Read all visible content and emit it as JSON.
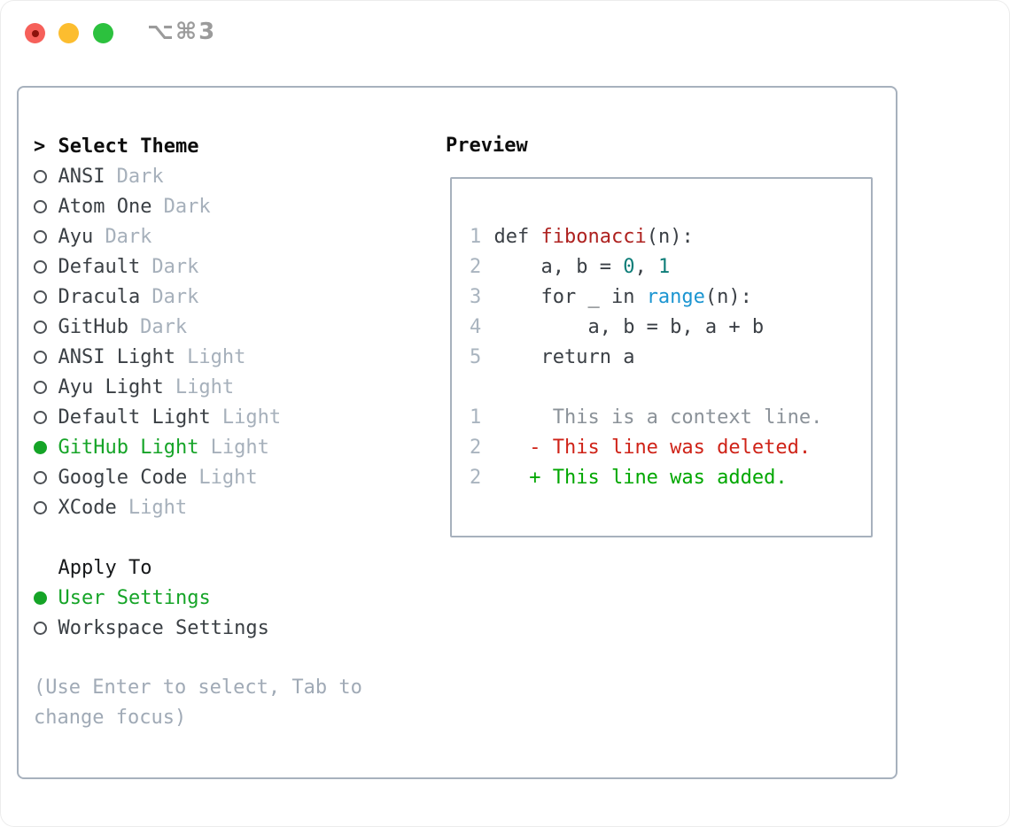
{
  "titlebar": {
    "shortcut": "⌥⌘3",
    "traffic_lights": [
      "close",
      "minimize",
      "zoom"
    ]
  },
  "colors": {
    "accent_green": "#15a427",
    "border_gray": "#a7b1bd",
    "code_text": "#3a3f45",
    "func_red": "#ae211f",
    "builtin_blue": "#1b95d1",
    "number_teal": "#0d7d78",
    "ctx_gray": "#8b9299",
    "diff_red": "#cf2318",
    "diff_green": "#00a700",
    "muted_gray": "#a6b0bb",
    "radio_outline": "#4d5156"
  },
  "theme_list": {
    "prompt": ">",
    "title": "Select Theme",
    "items": [
      {
        "label": "ANSI",
        "tag": "Dark",
        "selected": false
      },
      {
        "label": "Atom One",
        "tag": "Dark",
        "selected": false
      },
      {
        "label": "Ayu",
        "tag": "Dark",
        "selected": false
      },
      {
        "label": "Default",
        "tag": "Dark",
        "selected": false
      },
      {
        "label": "Dracula",
        "tag": "Dark",
        "selected": false
      },
      {
        "label": "GitHub",
        "tag": "Dark",
        "selected": false
      },
      {
        "label": "ANSI Light",
        "tag": "Light",
        "selected": false
      },
      {
        "label": "Ayu Light",
        "tag": "Light",
        "selected": false
      },
      {
        "label": "Default Light",
        "tag": "Light",
        "selected": false
      },
      {
        "label": "GitHub Light",
        "tag": "Light",
        "selected": true
      },
      {
        "label": "Google Code",
        "tag": "Light",
        "selected": false
      },
      {
        "label": "XCode",
        "tag": "Light",
        "selected": false
      }
    ]
  },
  "apply_to": {
    "title": "Apply To",
    "items": [
      {
        "label": "User Settings",
        "selected": true
      },
      {
        "label": "Workspace Settings",
        "selected": false
      }
    ]
  },
  "hint_lines": [
    "(Use Enter to select, Tab to",
    "change focus)"
  ],
  "preview": {
    "title": "Preview",
    "lines": [
      {
        "num": "1",
        "tokens": [
          [
            "def ",
            "code"
          ],
          [
            "fibonacci",
            "func"
          ],
          [
            "(n):",
            "code"
          ]
        ]
      },
      {
        "num": "2",
        "tokens": [
          [
            "    a, b = ",
            "code"
          ],
          [
            "0",
            "num"
          ],
          [
            ", ",
            "code"
          ],
          [
            "1",
            "num"
          ]
        ]
      },
      {
        "num": "3",
        "tokens": [
          [
            "    for _ in ",
            "code"
          ],
          [
            "range",
            "builtin"
          ],
          [
            "(n):",
            "code"
          ]
        ]
      },
      {
        "num": "4",
        "tokens": [
          [
            "        a, b = b, a + b",
            "code"
          ]
        ]
      },
      {
        "num": "5",
        "tokens": [
          [
            "    return a",
            "code"
          ]
        ]
      },
      {
        "num": "",
        "tokens": []
      },
      {
        "num": "1",
        "tokens": [
          [
            "     This is a context line.",
            "ctx"
          ]
        ]
      },
      {
        "num": "2",
        "tokens": [
          [
            "   - This line was deleted.",
            "del"
          ]
        ]
      },
      {
        "num": "2",
        "tokens": [
          [
            "   + This line was added.",
            "add"
          ]
        ]
      }
    ]
  }
}
